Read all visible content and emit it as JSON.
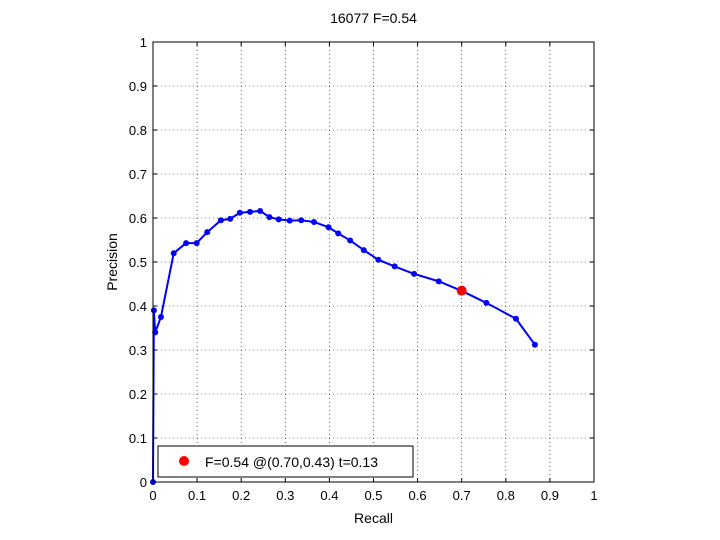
{
  "chart_data": {
    "type": "line",
    "title": "16077 F=0.54",
    "xlabel": "Recall",
    "ylabel": "Precision",
    "xlim": [
      0,
      1
    ],
    "ylim": [
      0,
      1
    ],
    "grid": true,
    "xticks": [
      "0",
      "0.1",
      "0.2",
      "0.3",
      "0.4",
      "0.5",
      "0.6",
      "0.7",
      "0.8",
      "0.9",
      "1"
    ],
    "yticks": [
      "0",
      "0.1",
      "0.2",
      "0.3",
      "0.4",
      "0.5",
      "0.6",
      "0.7",
      "0.8",
      "0.9",
      "1"
    ],
    "series": [
      {
        "color": "#0000ff",
        "points": [
          [
            0.0,
            0.0
          ],
          [
            0.002,
            0.39
          ],
          [
            0.005,
            0.34
          ],
          [
            0.018,
            0.375
          ],
          [
            0.047,
            0.52
          ],
          [
            0.075,
            0.543
          ],
          [
            0.099,
            0.543
          ],
          [
            0.123,
            0.568
          ],
          [
            0.154,
            0.595
          ],
          [
            0.175,
            0.598
          ],
          [
            0.197,
            0.612
          ],
          [
            0.22,
            0.614
          ],
          [
            0.243,
            0.616
          ],
          [
            0.264,
            0.602
          ],
          [
            0.285,
            0.597
          ],
          [
            0.31,
            0.594
          ],
          [
            0.336,
            0.595
          ],
          [
            0.365,
            0.591
          ],
          [
            0.398,
            0.579
          ],
          [
            0.42,
            0.565
          ],
          [
            0.447,
            0.549
          ],
          [
            0.478,
            0.527
          ],
          [
            0.511,
            0.505
          ],
          [
            0.548,
            0.49
          ],
          [
            0.592,
            0.473
          ],
          [
            0.648,
            0.456
          ],
          [
            0.701,
            0.434
          ],
          [
            0.756,
            0.407
          ],
          [
            0.823,
            0.371
          ],
          [
            0.866,
            0.312
          ]
        ]
      }
    ],
    "highlight": {
      "x": 0.7,
      "y": 0.435,
      "color": "#ff0000"
    },
    "legend": {
      "placement": "bottom-left",
      "text": "F=0.54 @(0.70,0.43) t=0.13"
    }
  }
}
